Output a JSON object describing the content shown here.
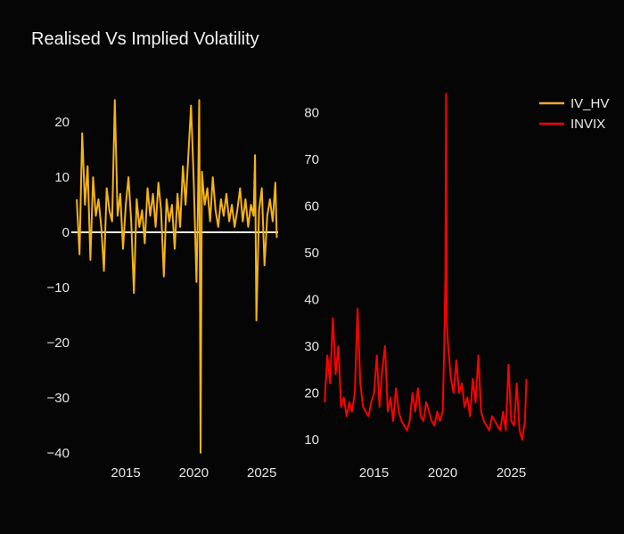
{
  "colors": {
    "background": "#050505",
    "iv_hv": "#f5b315",
    "iv_hv_legend": "#f0a830",
    "invix": "#ff0000",
    "zeroline": "#f0f0f0",
    "text": "#e6e6e6"
  },
  "chart_data": {
    "title": "Realised Vs Implied Volatility",
    "type": "line",
    "legend": {
      "placement": "top-right",
      "entries": [
        "IV_HV",
        "INVIX"
      ]
    },
    "subplots": [
      {
        "series_name": "IV_HV",
        "x_range": [
          2011.0,
          2026.2
        ],
        "y_range": [
          -41,
          26
        ],
        "x_ticks": [
          {
            "value": 2015,
            "label": "2015"
          },
          {
            "value": 2020,
            "label": "2020"
          },
          {
            "value": 2025,
            "label": "2025"
          }
        ],
        "y_ticks": [
          {
            "value": 20,
            "label": "20"
          },
          {
            "value": 10,
            "label": "10"
          },
          {
            "value": 0,
            "label": "0"
          },
          {
            "value": -10,
            "label": "−10"
          },
          {
            "value": -20,
            "label": "−20"
          },
          {
            "value": -30,
            "label": "−30"
          },
          {
            "value": -40,
            "label": "−40"
          }
        ],
        "zeroline": true,
        "grid": false,
        "x": [
          2011.4,
          2011.6,
          2011.8,
          2012.0,
          2012.2,
          2012.4,
          2012.6,
          2012.8,
          2013.0,
          2013.2,
          2013.4,
          2013.6,
          2013.8,
          2014.0,
          2014.2,
          2014.4,
          2014.6,
          2014.8,
          2015.0,
          2015.2,
          2015.4,
          2015.6,
          2015.8,
          2016.0,
          2016.2,
          2016.4,
          2016.6,
          2016.8,
          2017.0,
          2017.2,
          2017.4,
          2017.6,
          2017.8,
          2018.0,
          2018.2,
          2018.4,
          2018.6,
          2018.8,
          2019.0,
          2019.2,
          2019.4,
          2019.6,
          2019.8,
          2020.0,
          2020.2,
          2020.3,
          2020.4,
          2020.5,
          2020.6,
          2020.8,
          2021.0,
          2021.2,
          2021.4,
          2021.6,
          2021.8,
          2022.0,
          2022.2,
          2022.4,
          2022.6,
          2022.8,
          2023.0,
          2023.2,
          2023.4,
          2023.6,
          2023.8,
          2024.0,
          2024.2,
          2024.4,
          2024.5,
          2024.6,
          2024.8,
          2025.0,
          2025.2,
          2025.4,
          2025.6,
          2025.8,
          2026.0,
          2026.1
        ],
        "values": [
          6,
          -4,
          18,
          5,
          12,
          -5,
          10,
          3,
          6,
          1,
          -7,
          8,
          4,
          2,
          24,
          3,
          7,
          -3,
          5,
          10,
          2,
          -11,
          6,
          1,
          4,
          -2,
          8,
          3,
          7,
          1,
          9,
          4,
          -8,
          6,
          2,
          5,
          -3,
          7,
          1,
          12,
          5,
          14,
          23,
          9,
          -9,
          3,
          24,
          -40,
          11,
          5,
          8,
          2,
          10,
          4,
          1,
          6,
          3,
          7,
          2,
          5,
          1,
          4,
          8,
          2,
          6,
          1,
          5,
          3,
          14,
          -16,
          4,
          8,
          -6,
          3,
          6,
          2,
          9,
          -1
        ]
      },
      {
        "series_name": "INVIX",
        "x_range": [
          2011.0,
          2026.2
        ],
        "y_range": [
          6,
          85
        ],
        "x_ticks": [
          {
            "value": 2015,
            "label": "2015"
          },
          {
            "value": 2020,
            "label": "2020"
          },
          {
            "value": 2025,
            "label": "2025"
          }
        ],
        "y_ticks": [
          {
            "value": 80,
            "label": "80"
          },
          {
            "value": 70,
            "label": "70"
          },
          {
            "value": 60,
            "label": "60"
          },
          {
            "value": 50,
            "label": "50"
          },
          {
            "value": 40,
            "label": "40"
          },
          {
            "value": 30,
            "label": "30"
          },
          {
            "value": 20,
            "label": "20"
          },
          {
            "value": 10,
            "label": "10"
          }
        ],
        "zeroline": false,
        "grid": false,
        "x": [
          2011.4,
          2011.6,
          2011.8,
          2012.0,
          2012.2,
          2012.4,
          2012.6,
          2012.8,
          2013.0,
          2013.2,
          2013.4,
          2013.6,
          2013.8,
          2014.0,
          2014.2,
          2014.4,
          2014.6,
          2014.8,
          2015.0,
          2015.2,
          2015.4,
          2015.6,
          2015.8,
          2016.0,
          2016.2,
          2016.4,
          2016.6,
          2016.8,
          2017.0,
          2017.2,
          2017.4,
          2017.6,
          2017.8,
          2018.0,
          2018.2,
          2018.4,
          2018.6,
          2018.8,
          2019.0,
          2019.2,
          2019.4,
          2019.6,
          2019.8,
          2020.0,
          2020.1,
          2020.2,
          2020.25,
          2020.3,
          2020.4,
          2020.6,
          2020.8,
          2021.0,
          2021.2,
          2021.4,
          2021.6,
          2021.8,
          2022.0,
          2022.2,
          2022.4,
          2022.6,
          2022.8,
          2023.0,
          2023.2,
          2023.4,
          2023.6,
          2023.8,
          2024.0,
          2024.2,
          2024.4,
          2024.6,
          2024.8,
          2025.0,
          2025.2,
          2025.4,
          2025.6,
          2025.8,
          2026.0,
          2026.1
        ],
        "values": [
          18,
          28,
          22,
          36,
          24,
          30,
          17,
          19,
          15,
          18,
          16,
          20,
          38,
          22,
          17,
          16,
          15,
          18,
          20,
          28,
          17,
          25,
          30,
          16,
          19,
          14,
          21,
          16,
          14,
          13,
          12,
          14,
          20,
          16,
          21,
          15,
          14,
          18,
          16,
          14,
          13,
          16,
          14,
          16,
          28,
          44,
          84,
          35,
          30,
          23,
          20,
          27,
          20,
          22,
          17,
          19,
          15,
          23,
          18,
          28,
          16,
          14,
          13,
          12,
          15,
          14,
          13,
          12,
          16,
          12,
          26,
          14,
          13,
          22,
          12,
          10,
          14,
          23
        ]
      }
    ]
  }
}
